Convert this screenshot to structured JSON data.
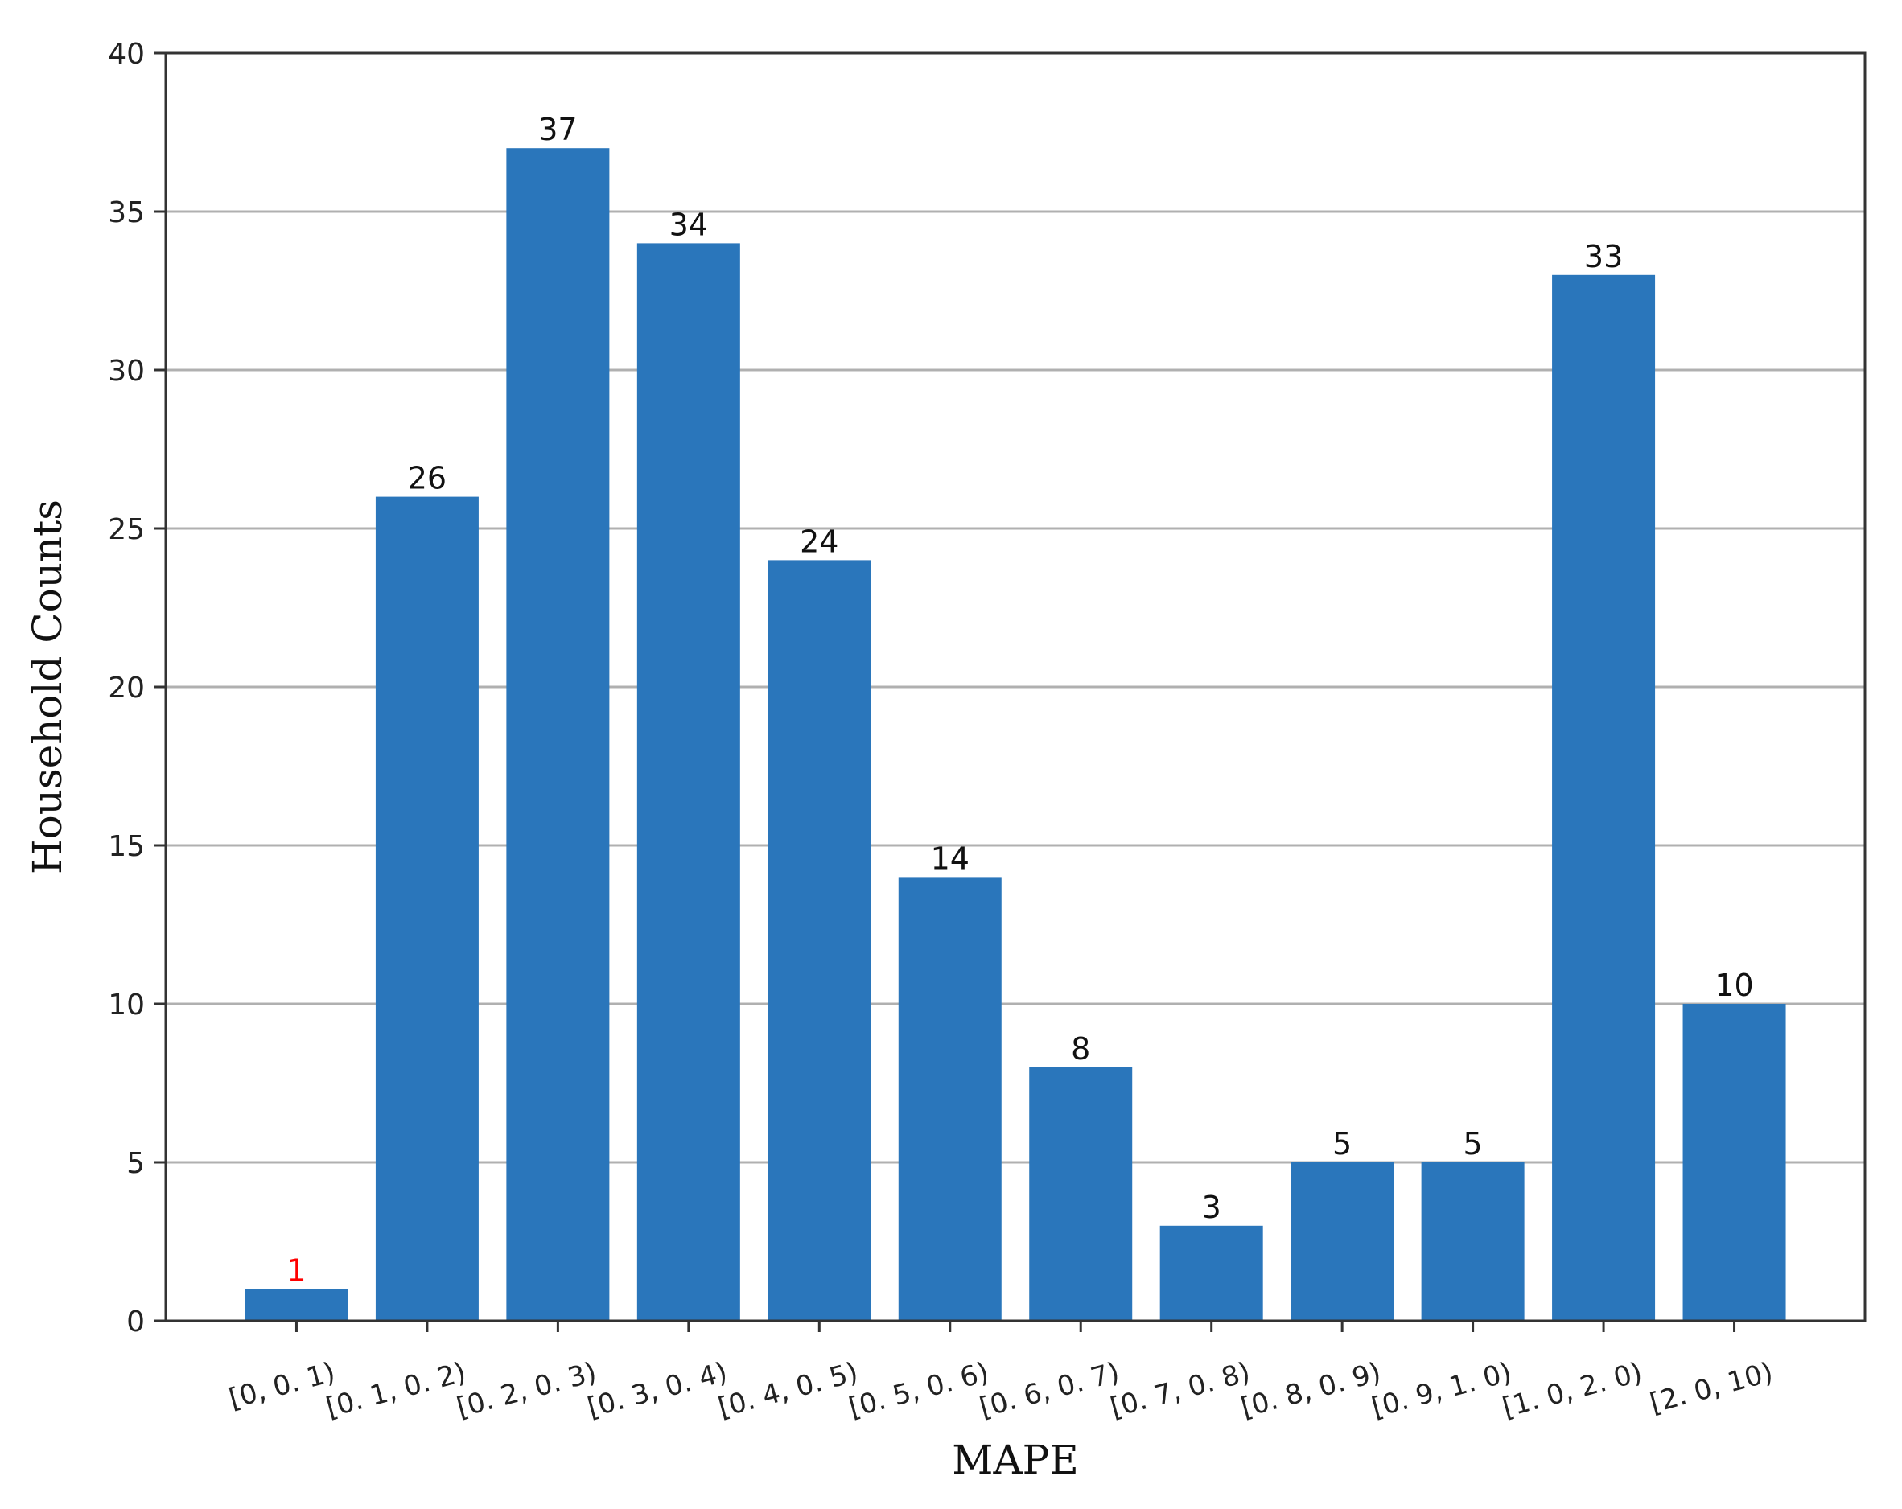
{
  "chart_data": {
    "type": "bar",
    "categories": [
      "[0, 0. 1)",
      "[0. 1, 0. 2)",
      "[0. 2, 0. 3)",
      "[0. 3, 0. 4)",
      "[0. 4, 0. 5)",
      "[0. 5, 0. 6)",
      "[0. 6, 0. 7)",
      "[0. 7, 0. 8)",
      "[0. 8, 0. 9)",
      "[0. 9, 1. 0)",
      "[1. 0, 2. 0)",
      "[2. 0, 10)"
    ],
    "values": [
      1,
      26,
      37,
      34,
      24,
      14,
      8,
      3,
      5,
      5,
      33,
      10
    ],
    "data_labels": [
      "1",
      "26",
      "37",
      "34",
      "24",
      "14",
      "8",
      "3",
      "5",
      "5",
      "33",
      "10"
    ],
    "xlabel": "MAPE",
    "ylabel": "Household Counts",
    "ylim": [
      0,
      40
    ],
    "yticks": [
      "0",
      "5",
      "10",
      "15",
      "20",
      "25",
      "30",
      "35",
      "40"
    ],
    "grid": "horizontal",
    "bar_color": "#2a76bb",
    "highlight_label_color": "#ff0000",
    "highlight_index": 0
  }
}
